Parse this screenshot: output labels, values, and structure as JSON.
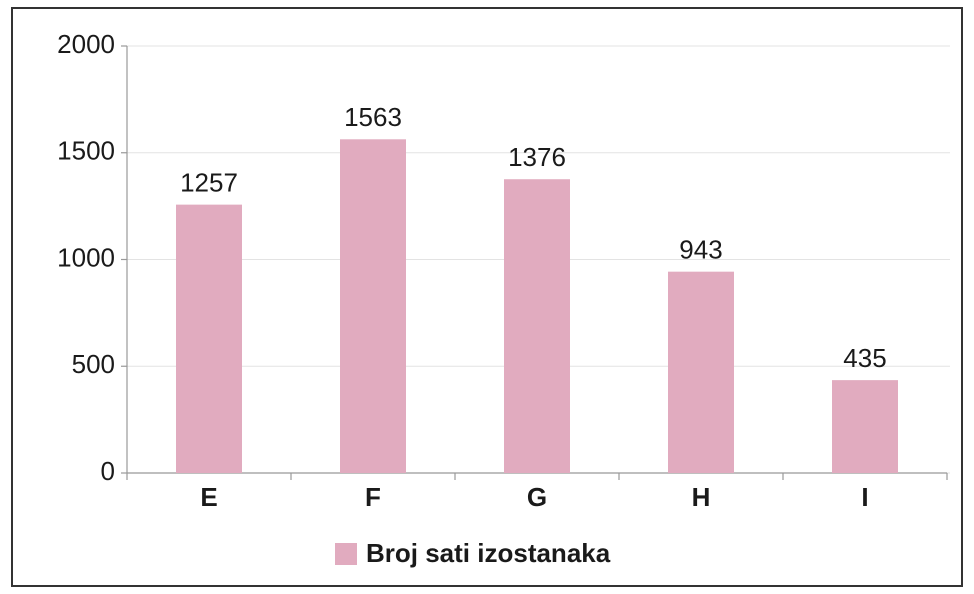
{
  "chart_data": {
    "type": "bar",
    "categories": [
      "E",
      "F",
      "G",
      "H",
      "I"
    ],
    "series": [
      {
        "name": "Broj sati izostanaka",
        "color": "#e1abbf",
        "values": [
          1257,
          1563,
          1376,
          943,
          435
        ]
      }
    ],
    "ylim": [
      0,
      2000
    ],
    "yticks": [
      0,
      500,
      1000,
      1500,
      2000
    ],
    "grid": true,
    "legend": "bottom"
  }
}
